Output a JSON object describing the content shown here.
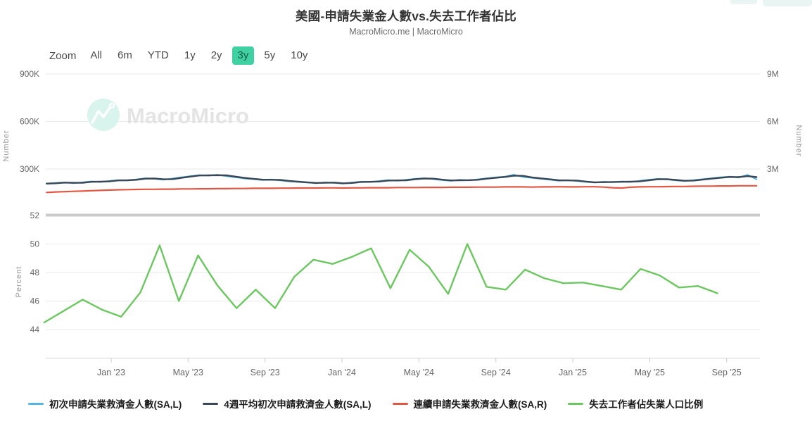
{
  "header": {
    "title": "美國-申請失業金人數vs.失去工作者佔比",
    "subtitle": "MacroMicro.me | MacroMicro"
  },
  "toolbar": {
    "zoom_label": "Zoom",
    "selected_bg": "#40d0a2",
    "selected_text": "#115e49",
    "buttons": [
      {
        "label": "All",
        "selected": false
      },
      {
        "label": "6m",
        "selected": false
      },
      {
        "label": "YTD",
        "selected": false
      },
      {
        "label": "1y",
        "selected": false
      },
      {
        "label": "2y",
        "selected": false
      },
      {
        "label": "3y",
        "selected": true
      },
      {
        "label": "5y",
        "selected": false
      },
      {
        "label": "10y",
        "selected": false
      }
    ]
  },
  "watermark": {
    "text": "MacroMicro"
  },
  "legend": {
    "items": [
      {
        "label": "初次申請失業救濟金人數(SA,L)",
        "color": "#54b5e3"
      },
      {
        "label": "4週平均初次申請救濟金人數(SA,L)",
        "color": "#3a4757"
      },
      {
        "label": "連續申請失業救濟金人數(SA,R)",
        "color": "#e25744"
      },
      {
        "label": "失去工作者佔失業人口比例",
        "color": "#6cc760"
      }
    ]
  },
  "chart_data": {
    "type": "line",
    "x_axis": {
      "unit": "decimal_year",
      "range": [
        2022.72,
        2025.81
      ],
      "ticks": [
        {
          "t": 2023.0,
          "label": "Jan '23"
        },
        {
          "t": 2023.3333,
          "label": "May '23"
        },
        {
          "t": 2023.6667,
          "label": "Sep '23"
        },
        {
          "t": 2024.0,
          "label": "Jan '24"
        },
        {
          "t": 2024.3333,
          "label": "May '24"
        },
        {
          "t": 2024.6667,
          "label": "Sep '24"
        },
        {
          "t": 2025.0,
          "label": "Jan '25"
        },
        {
          "t": 2025.3333,
          "label": "May '25"
        },
        {
          "t": 2025.6667,
          "label": "Sep '25"
        }
      ]
    },
    "panels": [
      {
        "id": "claims",
        "grid": true,
        "y_left": {
          "title": "Number",
          "range": [
            0,
            920000
          ],
          "ticks": [
            {
              "v": 300000,
              "label": "300K"
            },
            {
              "v": 600000,
              "label": "600K"
            },
            {
              "v": 900000,
              "label": "900K"
            }
          ]
        },
        "y_right": {
          "title": "Number",
          "range": [
            0,
            9200000
          ],
          "ticks": [
            {
              "v": 3000000,
              "label": "3M"
            },
            {
              "v": 6000000,
              "label": "6M"
            },
            {
              "v": 9000000,
              "label": "9M"
            }
          ]
        },
        "series": [
          {
            "key": "initial-claims",
            "name": "初次申請失業救濟金人數(SA,L)",
            "axis": "left",
            "color": "#54b5e3",
            "width": 2,
            "unit": "thousand_persons",
            "multiplier": 1000,
            "x_start": 2022.72,
            "x_step": 0.03894,
            "values": [
              208,
              212,
              215,
              210,
              216,
              222,
              218,
              225,
              230,
              228,
              235,
              242,
              238,
              232,
              240,
              248,
              255,
              262,
              258,
              264,
              255,
              248,
              240,
              236,
              230,
              234,
              228,
              222,
              218,
              214,
              210,
              216,
              212,
              208,
              215,
              220,
              218,
              224,
              230,
              226,
              232,
              238,
              242,
              236,
              230,
              225,
              232,
              228,
              235,
              242,
              248,
              252,
              264,
              250,
              244,
              238,
              232,
              226,
              230,
              224,
              218,
              214,
              220,
              216,
              222,
              218,
              226,
              232,
              238,
              234,
              228,
              224,
              230,
              236,
              242,
              248,
              252,
              246,
              263,
              235
            ]
          },
          {
            "key": "four-week-avg",
            "name": "4週平均初次申請救濟金人數(SA,L)",
            "axis": "left",
            "color": "#3a4757",
            "width": 2.4,
            "unit": "thousand_persons",
            "multiplier": 1000,
            "x_start": 2022.72,
            "x_step": 0.03894,
            "values": [
              208,
              210,
              214,
              213,
              213,
              219,
              220,
              222,
              228,
              229,
              232,
              239,
              240,
              235,
              236,
              244,
              252,
              259,
              260,
              261,
              260,
              252,
              244,
              238,
              233,
              232,
              231,
              225,
              220,
              216,
              212,
              213,
              214,
              210,
              212,
              218,
              219,
              221,
              227,
              228,
              229,
              235,
              240,
              239,
              233,
              228,
              229,
              230,
              232,
              239,
              245,
              250,
              258,
              257,
              247,
              241,
              235,
              229,
              228,
              227,
              221,
              216,
              217,
              218,
              219,
              220,
              222,
              229,
              235,
              236,
              231,
              226,
              227,
              233,
              239,
              245,
              250,
              249,
              255,
              249
            ]
          },
          {
            "key": "continued-claims",
            "name": "連續申請失業救濟金人數(SA,R)",
            "axis": "right",
            "color": "#e25744",
            "width": 2.2,
            "unit": "million_persons",
            "multiplier": 1000000,
            "x_start": 2022.72,
            "x_step": 0.03894,
            "values": [
              1.52,
              1.55,
              1.57,
              1.59,
              1.61,
              1.63,
              1.65,
              1.67,
              1.69,
              1.7,
              1.71,
              1.72,
              1.72,
              1.73,
              1.73,
              1.74,
              1.74,
              1.75,
              1.75,
              1.76,
              1.76,
              1.77,
              1.77,
              1.78,
              1.78,
              1.78,
              1.79,
              1.79,
              1.8,
              1.8,
              1.8,
              1.81,
              1.81,
              1.8,
              1.81,
              1.81,
              1.82,
              1.82,
              1.82,
              1.83,
              1.83,
              1.83,
              1.84,
              1.84,
              1.84,
              1.85,
              1.85,
              1.85,
              1.86,
              1.86,
              1.86,
              1.87,
              1.87,
              1.87,
              1.86,
              1.87,
              1.87,
              1.88,
              1.87,
              1.87,
              1.88,
              1.88,
              1.86,
              1.82,
              1.8,
              1.85,
              1.87,
              1.88,
              1.88,
              1.89,
              1.9,
              1.9,
              1.91,
              1.92,
              1.92,
              1.93,
              1.93,
              1.94,
              1.94,
              1.94
            ]
          }
        ]
      },
      {
        "id": "job-loser-share",
        "grid": true,
        "y_left": {
          "title": "Percent",
          "range": [
            42,
            52
          ],
          "ticks": [
            {
              "v": 52,
              "label": "52"
            },
            {
              "v": 50,
              "label": "50"
            },
            {
              "v": 48,
              "label": "48"
            },
            {
              "v": 46,
              "label": "46"
            },
            {
              "v": 44,
              "label": "44"
            }
          ]
        },
        "series": [
          {
            "key": "job-loser-share",
            "name": "失去工作者佔失業人口比例",
            "axis": "left",
            "color": "#6cc760",
            "width": 2.4,
            "unit": "percent",
            "multiplier": 1,
            "x_start": 2022.71,
            "x_step": 0.083333,
            "values": [
              44.5,
              45.3,
              46.1,
              45.4,
              44.9,
              46.6,
              49.9,
              46.0,
              49.2,
              47.1,
              45.5,
              46.8,
              45.5,
              47.7,
              48.9,
              48.6,
              49.1,
              49.7,
              46.9,
              49.6,
              48.4,
              46.5,
              50.0,
              47.0,
              46.8,
              48.2,
              47.6,
              47.25,
              47.3,
              47.05,
              46.8,
              48.25,
              47.8,
              46.95,
              47.05,
              46.55
            ]
          }
        ]
      }
    ]
  }
}
